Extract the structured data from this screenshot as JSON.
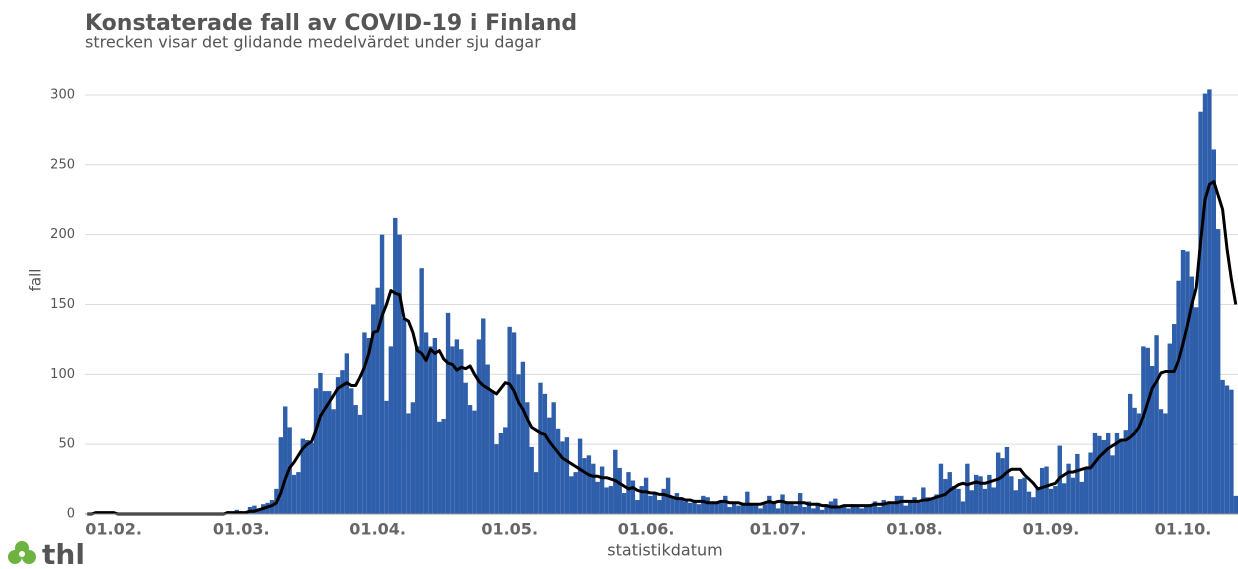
{
  "chart_data": {
    "type": "bar",
    "title": "Konstaterade fall av COVID-19 i Finland",
    "subtitle": "strecken visar det glidande medelvärdet under sju dagar",
    "ylabel": "fall",
    "xlabel": "statistikdatum",
    "logo": "thl",
    "grid": true,
    "ylim": [
      0,
      310
    ],
    "yticks": [
      0,
      50,
      100,
      150,
      200,
      250,
      300
    ],
    "categories": [
      null,
      null,
      null,
      null,
      null,
      null,
      "01.02.",
      null,
      null,
      null,
      null,
      null,
      null,
      null,
      null,
      null,
      null,
      null,
      null,
      null,
      null,
      null,
      null,
      null,
      null,
      null,
      null,
      null,
      null,
      null,
      null,
      null,
      null,
      null,
      null,
      "01.03.",
      null,
      null,
      null,
      null,
      null,
      null,
      null,
      null,
      null,
      null,
      null,
      null,
      null,
      null,
      null,
      null,
      null,
      null,
      null,
      null,
      null,
      null,
      null,
      null,
      null,
      null,
      null,
      null,
      null,
      null,
      "01.04.",
      null,
      null,
      null,
      null,
      null,
      null,
      null,
      null,
      null,
      null,
      null,
      null,
      null,
      null,
      null,
      null,
      null,
      null,
      null,
      null,
      null,
      null,
      null,
      null,
      null,
      null,
      null,
      null,
      null,
      "01.05.",
      null,
      null,
      null,
      null,
      null,
      null,
      null,
      null,
      null,
      null,
      null,
      null,
      null,
      null,
      null,
      null,
      null,
      null,
      null,
      null,
      null,
      null,
      null,
      null,
      null,
      null,
      null,
      null,
      null,
      null,
      "01.06.",
      null,
      null,
      null,
      null,
      null,
      null,
      null,
      null,
      null,
      null,
      null,
      null,
      null,
      null,
      null,
      null,
      null,
      null,
      null,
      null,
      null,
      null,
      null,
      null,
      null,
      null,
      null,
      null,
      null,
      "01.07.",
      null,
      null,
      null,
      null,
      null,
      null,
      null,
      null,
      null,
      null,
      null,
      null,
      null,
      null,
      null,
      null,
      null,
      null,
      null,
      null,
      null,
      null,
      null,
      null,
      null,
      null,
      null,
      null,
      null,
      null,
      "01.08.",
      null,
      null,
      null,
      null,
      null,
      null,
      null,
      null,
      null,
      null,
      null,
      null,
      null,
      null,
      null,
      null,
      null,
      null,
      null,
      null,
      null,
      null,
      null,
      null,
      null,
      null,
      null,
      null,
      null,
      null,
      "01.09.",
      null,
      null,
      null,
      null,
      null,
      null,
      null,
      null,
      null,
      null,
      null,
      null,
      null,
      null,
      null,
      null,
      null,
      null,
      null,
      null,
      null,
      null,
      null,
      null,
      null,
      null,
      null,
      null,
      null,
      "01.10.",
      null,
      null,
      null,
      null,
      null,
      null,
      null,
      null,
      null,
      null,
      null,
      null
    ],
    "series": [
      {
        "type": "bar",
        "color": "#2f5faa",
        "values": [
          0,
          0,
          0,
          1,
          0,
          0,
          0,
          0,
          0,
          0,
          0,
          0,
          0,
          0,
          0,
          0,
          0,
          0,
          0,
          0,
          0,
          0,
          0,
          0,
          0,
          0,
          0,
          0,
          0,
          0,
          0,
          1,
          2,
          1,
          3,
          2,
          1,
          5,
          6,
          4,
          7,
          8,
          10,
          18,
          55,
          77,
          62,
          28,
          30,
          54,
          53,
          51,
          90,
          101,
          88,
          88,
          75,
          98,
          103,
          115,
          90,
          78,
          71,
          130,
          126,
          150,
          162,
          200,
          81,
          120,
          212,
          200,
          140,
          72,
          80,
          120,
          176,
          130,
          120,
          126,
          66,
          68,
          144,
          120,
          125,
          118,
          94,
          78,
          74,
          125,
          140,
          107,
          88,
          50,
          58,
          62,
          134,
          130,
          100,
          109,
          80,
          48,
          30,
          94,
          86,
          69,
          80,
          61,
          52,
          55,
          27,
          30,
          54,
          40,
          42,
          36,
          23,
          34,
          19,
          20,
          46,
          33,
          15,
          30,
          24,
          10,
          20,
          26,
          13,
          14,
          10,
          18,
          26,
          12,
          15,
          12,
          9,
          8,
          10,
          7,
          13,
          12,
          9,
          8,
          10,
          13,
          5,
          8,
          6,
          8,
          16,
          7,
          6,
          4,
          7,
          13,
          8,
          4,
          14,
          9,
          7,
          6,
          15,
          5,
          9,
          4,
          8,
          3,
          7,
          9,
          11,
          5,
          6,
          4,
          7,
          5,
          4,
          6,
          7,
          9,
          5,
          10,
          8,
          7,
          13,
          13,
          6,
          10,
          12,
          8,
          19,
          12,
          11,
          14,
          36,
          25,
          30,
          20,
          18,
          9,
          36,
          17,
          28,
          27,
          18,
          28,
          19,
          44,
          40,
          48,
          27,
          17,
          25,
          26,
          16,
          12,
          19,
          33,
          34,
          18,
          20,
          49,
          22,
          36,
          26,
          43,
          23,
          33,
          44,
          58,
          56,
          53,
          58,
          42,
          58,
          54,
          60,
          86,
          76,
          72,
          120,
          119,
          106,
          128,
          75,
          72,
          122,
          136,
          167,
          189,
          188,
          170,
          148,
          288,
          301,
          304,
          261,
          204,
          96,
          92,
          89,
          13
        ]
      },
      {
        "type": "line",
        "color": "#000000",
        "values": [
          0,
          0,
          1,
          1,
          1,
          1,
          1,
          0,
          0,
          0,
          0,
          0,
          0,
          0,
          0,
          0,
          0,
          0,
          0,
          0,
          0,
          0,
          0,
          0,
          0,
          0,
          0,
          0,
          0,
          0,
          0,
          0,
          1,
          1,
          1,
          1,
          1,
          2,
          2,
          3,
          4,
          5,
          6,
          8,
          15,
          25,
          33,
          37,
          42,
          47,
          50,
          52,
          60,
          70,
          75,
          80,
          85,
          90,
          92,
          94,
          92,
          92,
          98,
          105,
          115,
          130,
          131,
          142,
          150,
          160,
          158,
          157,
          140,
          138,
          130,
          117,
          115,
          110,
          118,
          115,
          117,
          111,
          108,
          107,
          103,
          105,
          104,
          106,
          100,
          95,
          92,
          90,
          88,
          86,
          90,
          94,
          93,
          88,
          80,
          75,
          68,
          62,
          60,
          58,
          57,
          52,
          48,
          44,
          40,
          38,
          36,
          34,
          32,
          30,
          28,
          27,
          27,
          26,
          26,
          25,
          24,
          22,
          20,
          18,
          19,
          17,
          16,
          16,
          15,
          15,
          14,
          14,
          13,
          12,
          11,
          11,
          10,
          10,
          9,
          9,
          9,
          8,
          8,
          8,
          9,
          9,
          8,
          8,
          8,
          7,
          7,
          7,
          7,
          7,
          8,
          9,
          8,
          9,
          9,
          8,
          8,
          8,
          8,
          8,
          7,
          7,
          7,
          6,
          6,
          5,
          5,
          5,
          6,
          6,
          6,
          6,
          6,
          6,
          6,
          7,
          7,
          7,
          8,
          8,
          8,
          9,
          9,
          9,
          9,
          9,
          10,
          10,
          11,
          12,
          13,
          14,
          17,
          19,
          21,
          22,
          21,
          22,
          23,
          22,
          22,
          23,
          24,
          25,
          27,
          30,
          32,
          32,
          32,
          28,
          25,
          22,
          18,
          19,
          20,
          21,
          22,
          26,
          28,
          30,
          30,
          31,
          32,
          33,
          33,
          37,
          41,
          44,
          47,
          49,
          51,
          53,
          53,
          55,
          58,
          62,
          70,
          80,
          90,
          95,
          101,
          102,
          102,
          102,
          110,
          122,
          135,
          150,
          162,
          195,
          225,
          236,
          238,
          228,
          218,
          190,
          168,
          150
        ]
      }
    ]
  }
}
